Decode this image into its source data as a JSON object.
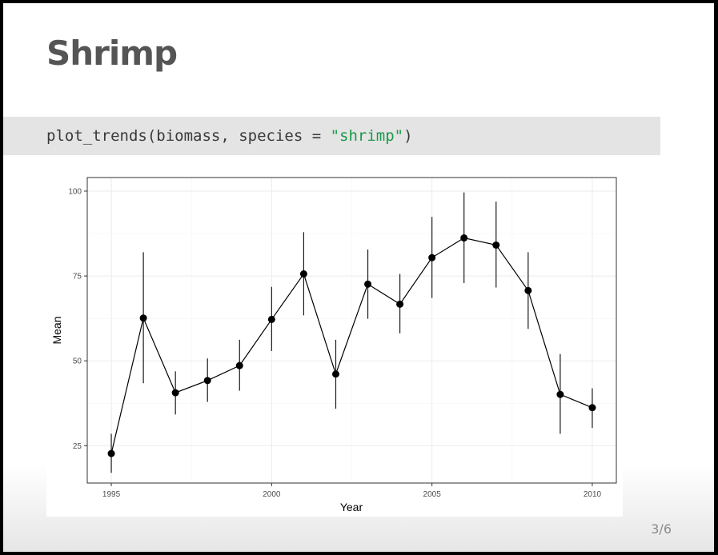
{
  "slide": {
    "title": "Shrimp",
    "code": {
      "prefix": "plot_trends(biomass, species = ",
      "string": "\"shrimp\"",
      "suffix": ")"
    },
    "page_number": "3/6"
  },
  "chart_data": {
    "type": "line",
    "xlabel": "Year",
    "ylabel": "Mean",
    "xlim": [
      1994.25,
      2010.75
    ],
    "ylim": [
      14,
      104
    ],
    "xticks": [
      1995,
      2000,
      2005,
      2010
    ],
    "yticks": [
      25,
      50,
      75,
      100
    ],
    "grid": true,
    "series": [
      {
        "x": [
          1995,
          1996,
          1997,
          1998,
          1999,
          2000,
          2001,
          2002,
          2003,
          2004,
          2005,
          2006,
          2007,
          2008,
          2009,
          2010
        ],
        "y": [
          22.7,
          62.6,
          40.6,
          44.2,
          48.6,
          62.2,
          75.6,
          46.1,
          72.6,
          66.7,
          80.4,
          86.2,
          84.1,
          70.7,
          40.1,
          36.2
        ],
        "lower": [
          17.0,
          43.4,
          34.2,
          37.9,
          41.2,
          52.9,
          63.4,
          35.9,
          62.4,
          58.1,
          68.5,
          72.9,
          71.6,
          59.4,
          28.5,
          30.2
        ],
        "upper": [
          28.5,
          82.0,
          46.9,
          50.7,
          56.2,
          71.8,
          87.9,
          56.2,
          82.8,
          75.6,
          92.4,
          99.6,
          96.9,
          82.0,
          52.0,
          41.9
        ]
      }
    ]
  }
}
